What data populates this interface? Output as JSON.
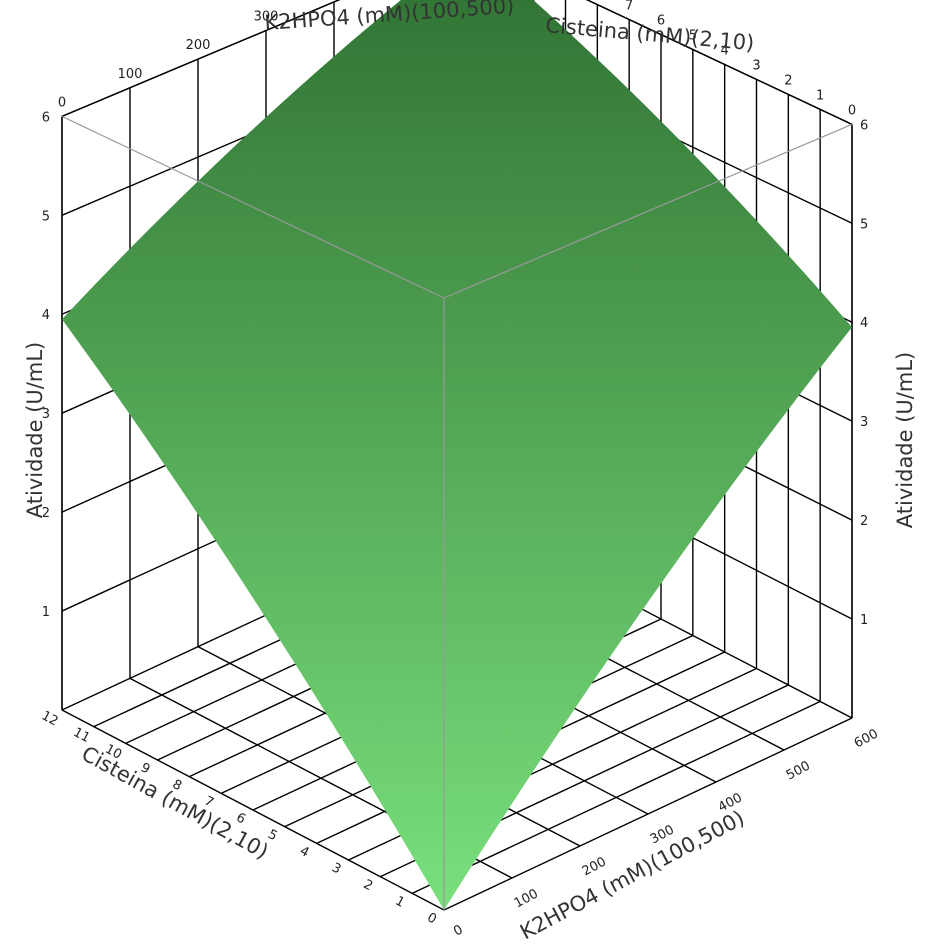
{
  "chart_data": {
    "type": "surface",
    "x_axis": {
      "label": "K2HPO4 (mM)(100,500)",
      "range": [
        0,
        600
      ],
      "ticks": [
        "0",
        "100",
        "200",
        "300",
        "400",
        "500",
        "600"
      ]
    },
    "y_axis": {
      "label": "Cisteina (mM)(2,10)",
      "range": [
        0,
        12
      ],
      "ticks": [
        "0",
        "1",
        "2",
        "3",
        "4",
        "5",
        "6",
        "7",
        "8",
        "9",
        "10",
        "11",
        "12"
      ]
    },
    "z_axis": {
      "label": "Atividade (U/mL)",
      "range": [
        0,
        6
      ],
      "ticks": [
        "1",
        "2",
        "3",
        "4",
        "5",
        "6"
      ]
    },
    "surface": {
      "corner_values": [
        {
          "k2hpo4": 0,
          "cisteina": 0,
          "atividade": 0
        },
        {
          "k2hpo4": 600,
          "cisteina": 0,
          "atividade": 3.95
        },
        {
          "k2hpo4": 0,
          "cisteina": 12,
          "atividade": 3.95
        },
        {
          "k2hpo4": 600,
          "cisteina": 12,
          "atividade": 6.0
        }
      ],
      "color_low": "#79e07c",
      "color_high": "#2e6f31"
    },
    "grid": true
  }
}
